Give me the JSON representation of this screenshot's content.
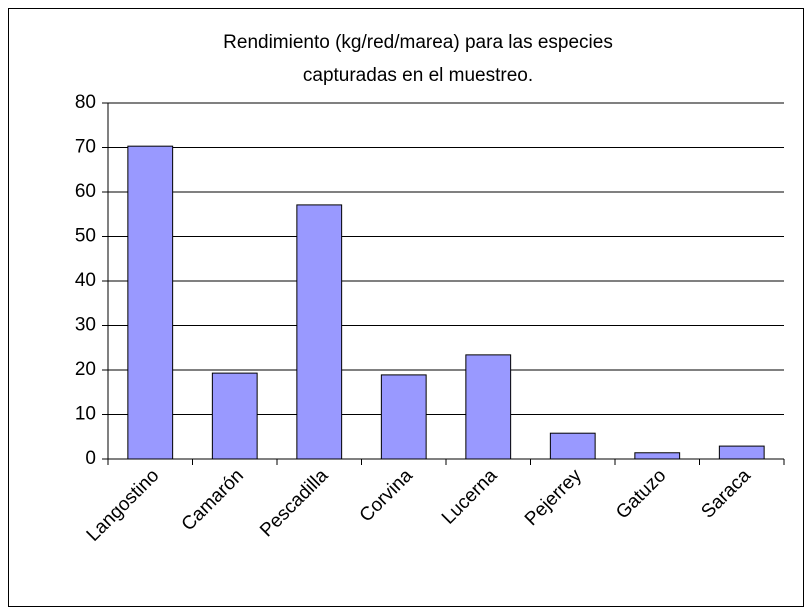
{
  "chart_data": {
    "type": "bar",
    "title": [
      "Rendimiento (kg/red/marea) para las especies",
      "capturadas en el muestreo."
    ],
    "categories": [
      "Langostino",
      "Camarón",
      "Pescadilla",
      "Corvina",
      "Lucerna",
      "Pejerrey",
      "Gatuzo",
      "Saraca"
    ],
    "values": [
      70.3,
      19.3,
      57.1,
      18.9,
      23.4,
      5.8,
      1.4,
      2.9
    ],
    "color": "#9999ff",
    "ylim": [
      0,
      80
    ],
    "yticks": [
      0,
      10,
      20,
      30,
      40,
      50,
      60,
      70,
      80
    ],
    "grid": true
  }
}
